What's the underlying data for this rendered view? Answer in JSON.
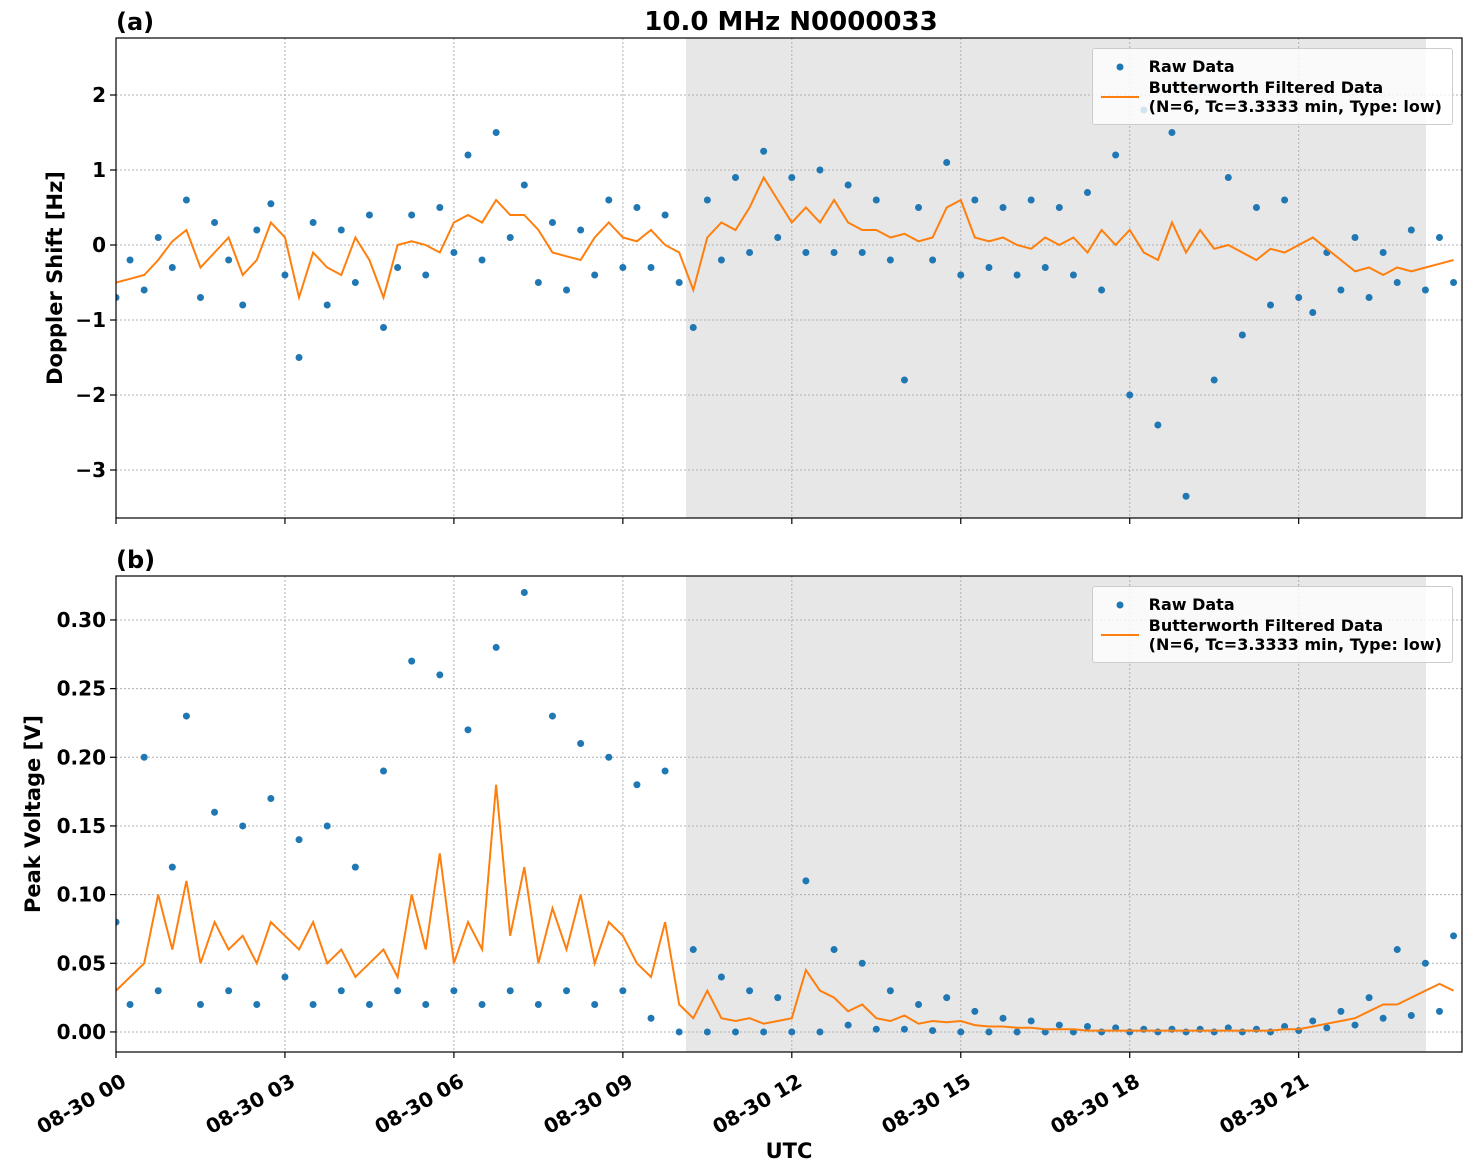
{
  "chart_data": [
    {
      "type": "line",
      "panel_label": "(a)",
      "title": "10.0 MHz N0000033",
      "ylabel": "Doppler Shift [Hz]",
      "x": [
        0,
        0.25,
        0.5,
        0.75,
        1,
        1.25,
        1.5,
        1.75,
        2,
        2.25,
        2.5,
        2.75,
        3,
        3.25,
        3.5,
        3.75,
        4,
        4.25,
        4.5,
        4.75,
        5,
        5.25,
        5.5,
        5.75,
        6,
        6.25,
        6.5,
        6.75,
        7,
        7.25,
        7.5,
        7.75,
        8,
        8.25,
        8.5,
        8.75,
        9,
        9.25,
        9.5,
        9.75,
        10,
        10.25,
        10.5,
        10.75,
        11,
        11.25,
        11.5,
        11.75,
        12,
        12.25,
        12.5,
        12.75,
        13,
        13.25,
        13.5,
        13.75,
        14,
        14.25,
        14.5,
        14.75,
        15,
        15.25,
        15.5,
        15.75,
        16,
        16.25,
        16.5,
        16.75,
        17,
        17.25,
        17.5,
        17.75,
        18,
        18.25,
        18.5,
        18.75,
        19,
        19.25,
        19.5,
        19.75,
        20,
        20.25,
        20.5,
        20.75,
        21,
        21.25,
        21.5,
        21.75,
        22,
        22.25,
        22.5,
        22.75,
        23,
        23.25,
        23.5,
        23.75
      ],
      "series": [
        {
          "name": "Raw Data",
          "type": "scatter",
          "color": "#1f77b4",
          "values": [
            -0.7,
            -0.2,
            -0.6,
            0.1,
            -0.3,
            0.6,
            -0.7,
            0.3,
            -0.2,
            -0.8,
            0.2,
            0.55,
            -0.4,
            -1.5,
            0.3,
            -0.8,
            0.2,
            -0.5,
            0.4,
            -1.1,
            -0.3,
            0.4,
            -0.4,
            0.5,
            -0.1,
            1.2,
            -0.2,
            1.5,
            0.1,
            0.8,
            -0.5,
            0.3,
            -0.6,
            0.2,
            -0.4,
            0.6,
            -0.3,
            0.5,
            -0.3,
            0.4,
            -0.5,
            -1.1,
            0.6,
            -0.2,
            0.9,
            -0.1,
            1.25,
            0.1,
            0.9,
            -0.1,
            1.0,
            -0.1,
            0.8,
            -0.1,
            0.6,
            -0.2,
            -1.8,
            0.5,
            -0.2,
            1.1,
            -0.4,
            0.6,
            -0.3,
            0.5,
            -0.4,
            0.6,
            -0.3,
            0.5,
            -0.4,
            0.7,
            -0.6,
            1.2,
            -2.0,
            1.8,
            -2.4,
            1.5,
            -3.35,
            2.1,
            -1.8,
            0.9,
            -1.2,
            0.5,
            -0.8,
            0.6,
            -0.7,
            -0.9,
            -0.1,
            -0.6,
            0.1,
            -0.7,
            -0.1,
            -0.5,
            0.2,
            -0.6,
            0.1,
            -0.5
          ]
        },
        {
          "name": "Butterworth Filtered Data\n(N=6, Tc=3.3333 min, Type: low)",
          "type": "line",
          "color": "#ff7f0e",
          "values": [
            -0.5,
            -0.45,
            -0.4,
            -0.2,
            0.05,
            0.2,
            -0.3,
            -0.1,
            0.1,
            -0.4,
            -0.2,
            0.3,
            0.1,
            -0.7,
            -0.1,
            -0.3,
            -0.4,
            0.1,
            -0.2,
            -0.7,
            0,
            0.05,
            0,
            -0.1,
            0.3,
            0.4,
            0.3,
            0.6,
            0.4,
            0.4,
            0.2,
            -0.1,
            -0.15,
            -0.2,
            0.1,
            0.3,
            0.1,
            0.05,
            0.2,
            0,
            -0.1,
            -0.6,
            0.1,
            0.3,
            0.2,
            0.5,
            0.9,
            0.6,
            0.3,
            0.5,
            0.3,
            0.6,
            0.3,
            0.2,
            0.2,
            0.1,
            0.15,
            0.05,
            0.1,
            0.5,
            0.6,
            0.1,
            0.05,
            0.1,
            0,
            -0.05,
            0.1,
            0,
            0.1,
            -0.1,
            0.2,
            0,
            0.2,
            -0.1,
            -0.2,
            0.3,
            -0.1,
            0.2,
            -0.05,
            0,
            -0.1,
            -0.2,
            -0.05,
            -0.1,
            0,
            0.1,
            -0.05,
            -0.2,
            -0.35,
            -0.3,
            -0.4,
            -0.3,
            -0.35,
            -0.3,
            -0.25,
            -0.2
          ]
        }
      ],
      "xlim": [
        0,
        23.9
      ],
      "xticks": [
        0,
        3,
        6,
        9,
        12,
        15,
        18,
        21
      ],
      "ylim": [
        -3.64,
        2.76
      ],
      "yticks": [
        {
          "value": -3,
          "label": "−3"
        },
        {
          "value": -2,
          "label": "−2"
        },
        {
          "value": -1,
          "label": "−1"
        },
        0,
        1,
        2
      ],
      "shade_xlim": [
        10.12,
        23.26
      ],
      "shade_color": "#e7e7e7",
      "grid": true,
      "legend": "upper right"
    },
    {
      "type": "line",
      "panel_label": "(b)",
      "ylabel": "Peak Voltage [V]",
      "xlabel": "UTC",
      "x": [
        0,
        0.25,
        0.5,
        0.75,
        1,
        1.25,
        1.5,
        1.75,
        2,
        2.25,
        2.5,
        2.75,
        3,
        3.25,
        3.5,
        3.75,
        4,
        4.25,
        4.5,
        4.75,
        5,
        5.25,
        5.5,
        5.75,
        6,
        6.25,
        6.5,
        6.75,
        7,
        7.25,
        7.5,
        7.75,
        8,
        8.25,
        8.5,
        8.75,
        9,
        9.25,
        9.5,
        9.75,
        10,
        10.25,
        10.5,
        10.75,
        11,
        11.25,
        11.5,
        11.75,
        12,
        12.25,
        12.5,
        12.75,
        13,
        13.25,
        13.5,
        13.75,
        14,
        14.25,
        14.5,
        14.75,
        15,
        15.25,
        15.5,
        15.75,
        16,
        16.25,
        16.5,
        16.75,
        17,
        17.25,
        17.5,
        17.75,
        18,
        18.25,
        18.5,
        18.75,
        19,
        19.25,
        19.5,
        19.75,
        20,
        20.25,
        20.5,
        20.75,
        21,
        21.25,
        21.5,
        21.75,
        22,
        22.25,
        22.5,
        22.75,
        23,
        23.25,
        23.5,
        23.75
      ],
      "series": [
        {
          "name": "Raw Data",
          "type": "scatter",
          "color": "#1f77b4",
          "values": [
            0.08,
            0.02,
            0.2,
            0.03,
            0.12,
            0.23,
            0.02,
            0.16,
            0.03,
            0.15,
            0.02,
            0.17,
            0.04,
            0.14,
            0.02,
            0.15,
            0.03,
            0.12,
            0.02,
            0.19,
            0.03,
            0.27,
            0.02,
            0.26,
            0.03,
            0.22,
            0.02,
            0.28,
            0.03,
            0.32,
            0.02,
            0.23,
            0.03,
            0.21,
            0.02,
            0.2,
            0.03,
            0.18,
            0.01,
            0.19,
            0.0,
            0.06,
            0.0,
            0.04,
            0.0,
            0.03,
            0.0,
            0.025,
            0.0,
            0.11,
            0.0,
            0.06,
            0.005,
            0.05,
            0.002,
            0.03,
            0.002,
            0.02,
            0.001,
            0.025,
            0.0,
            0.015,
            0.0,
            0.01,
            0.0,
            0.008,
            0.0,
            0.005,
            0.0,
            0.004,
            0.0,
            0.003,
            0.0,
            0.002,
            0.0,
            0.002,
            0.0,
            0.002,
            0.0,
            0.003,
            0.0,
            0.002,
            0.0,
            0.004,
            0.001,
            0.008,
            0.003,
            0.015,
            0.005,
            0.025,
            0.01,
            0.06,
            0.012,
            0.05,
            0.015,
            0.07
          ]
        },
        {
          "name": "Butterworth Filtered Data\n(N=6, Tc=3.3333 min, Type: low)",
          "type": "line",
          "color": "#ff7f0e",
          "values": [
            0.03,
            0.04,
            0.05,
            0.1,
            0.06,
            0.11,
            0.05,
            0.08,
            0.06,
            0.07,
            0.05,
            0.08,
            0.07,
            0.06,
            0.08,
            0.05,
            0.06,
            0.04,
            0.05,
            0.06,
            0.04,
            0.1,
            0.06,
            0.13,
            0.05,
            0.08,
            0.06,
            0.18,
            0.07,
            0.12,
            0.05,
            0.09,
            0.06,
            0.1,
            0.05,
            0.08,
            0.07,
            0.05,
            0.04,
            0.08,
            0.02,
            0.01,
            0.03,
            0.01,
            0.008,
            0.01,
            0.006,
            0.008,
            0.01,
            0.045,
            0.03,
            0.025,
            0.015,
            0.02,
            0.01,
            0.008,
            0.012,
            0.006,
            0.008,
            0.007,
            0.008,
            0.005,
            0.004,
            0.004,
            0.003,
            0.003,
            0.002,
            0.002,
            0.002,
            0.001,
            0.001,
            0.001,
            0.001,
            0.001,
            0.001,
            0.001,
            0.001,
            0.001,
            0.001,
            0.001,
            0.001,
            0.001,
            0.001,
            0.002,
            0.002,
            0.004,
            0.006,
            0.008,
            0.01,
            0.015,
            0.02,
            0.02,
            0.025,
            0.03,
            0.035,
            0.03
          ]
        }
      ],
      "xlim": [
        0,
        23.9
      ],
      "xticks": [
        {
          "value": 0,
          "label": "08-30 00"
        },
        {
          "value": 3,
          "label": "08-30 03"
        },
        {
          "value": 6,
          "label": "08-30 06"
        },
        {
          "value": 9,
          "label": "08-30 09"
        },
        {
          "value": 12,
          "label": "08-30 12"
        },
        {
          "value": 15,
          "label": "08-30 15"
        },
        {
          "value": 18,
          "label": "08-30 18"
        },
        {
          "value": 21,
          "label": "08-30 21"
        }
      ],
      "ylim": [
        -0.0146,
        0.332
      ],
      "yticks": [
        {
          "value": 0,
          "label": "0.00"
        },
        {
          "value": 0.05,
          "label": "0.05"
        },
        {
          "value": 0.1,
          "label": "0.10"
        },
        {
          "value": 0.15,
          "label": "0.15"
        },
        {
          "value": 0.2,
          "label": "0.20"
        },
        {
          "value": 0.25,
          "label": "0.25"
        },
        {
          "value": 0.3,
          "label": "0.30"
        }
      ],
      "shade_xlim": [
        10.12,
        23.26
      ],
      "shade_color": "#e7e7e7",
      "grid": true,
      "legend": "upper right"
    }
  ]
}
